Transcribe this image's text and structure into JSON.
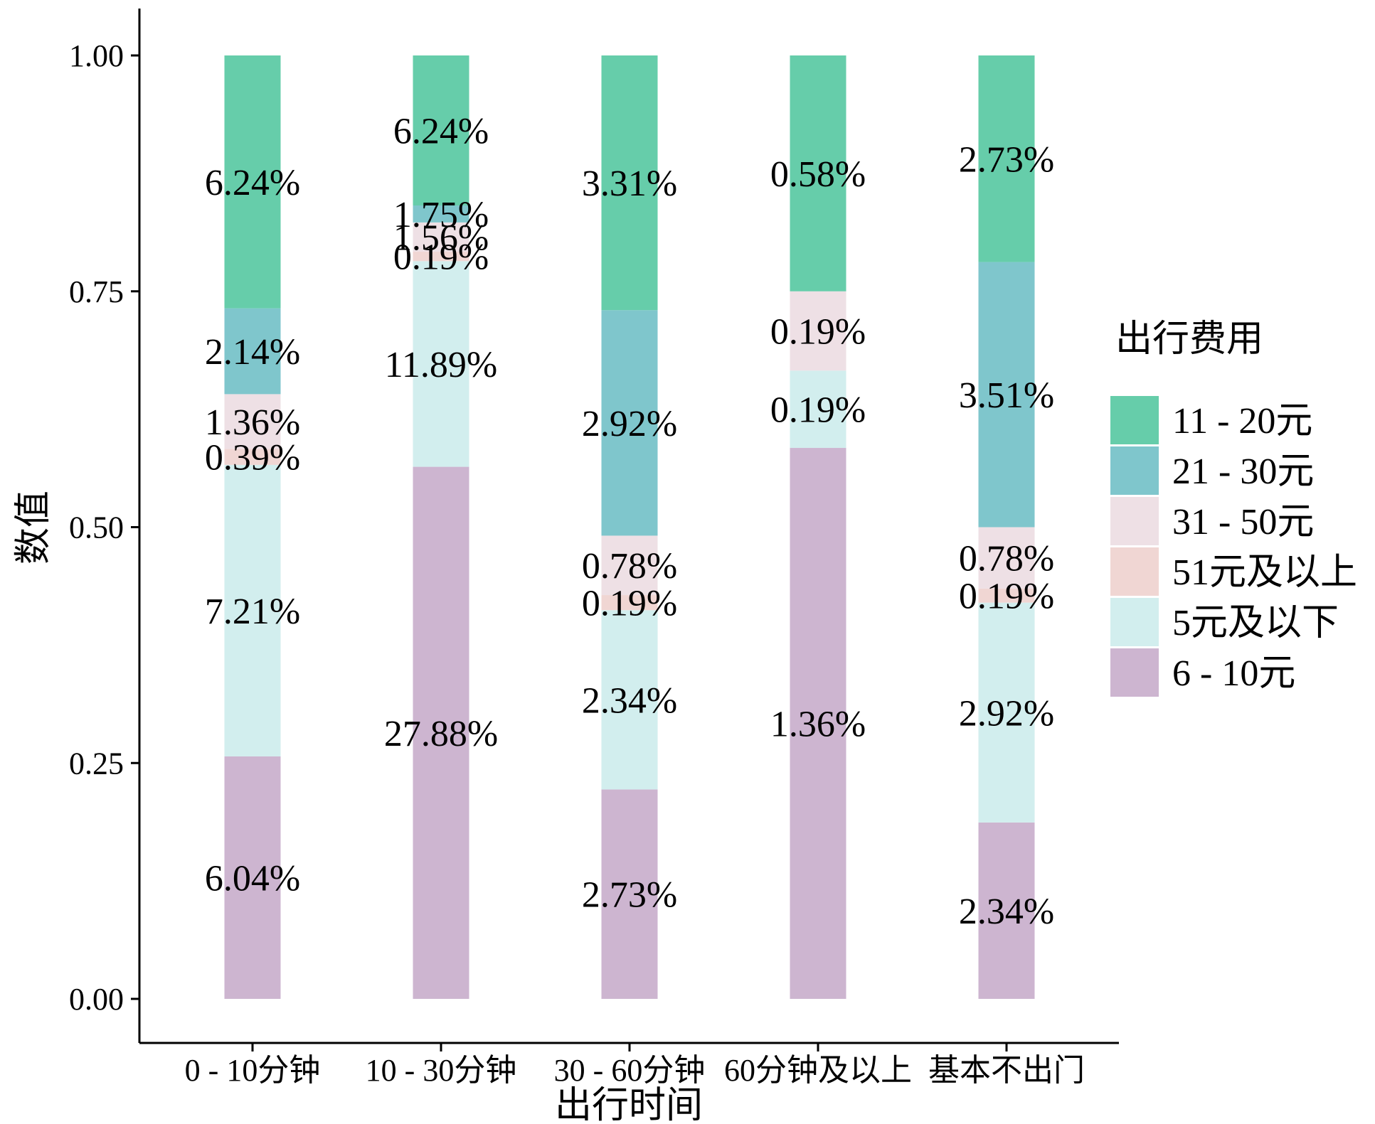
{
  "chart_data": {
    "type": "bar",
    "stacked": true,
    "xlabel": "出行时间",
    "ylabel": "数值",
    "ylim": [
      0,
      1
    ],
    "yticks": [
      "0.00",
      "0.25",
      "0.50",
      "0.75",
      "1.00"
    ],
    "ytick_values": [
      0,
      0.25,
      0.5,
      0.75,
      1.0
    ],
    "categories": [
      "0 - 10分钟",
      "10 - 30分钟",
      "30 - 60分钟",
      "60分钟及以上",
      "基本不出门"
    ],
    "legend": {
      "title": "出行费用",
      "position": "right",
      "entries": [
        "11 - 20元",
        "21 - 30元",
        "31 - 50元",
        "51元及以上",
        "5元及以下",
        "6 - 10元"
      ]
    },
    "stack_order_bottom_to_top": [
      "6 - 10元",
      "5元及以下",
      "51元及以上",
      "31 - 50元",
      "21 - 30元",
      "11 - 20元"
    ],
    "series": [
      {
        "name": "6 - 10元",
        "color": "#CDB5D0",
        "values": [
          0.257,
          0.564,
          0.222,
          0.584,
          0.187
        ],
        "labels": [
          "6.04%",
          "27.88%",
          "2.73%",
          "1.36%",
          "2.34%"
        ]
      },
      {
        "name": "5元及以下",
        "color": "#D2EEEE",
        "values": [
          0.309,
          0.218,
          0.19,
          0.082,
          0.233
        ],
        "labels": [
          "7.21%",
          "11.89%",
          "2.34%",
          "0.19%",
          "2.92%"
        ]
      },
      {
        "name": "51元及以上",
        "color": "#F0D6D3",
        "values": [
          0.017,
          0.01,
          0.016,
          0.0,
          0.015
        ],
        "labels": [
          "0.39%",
          "0.19%",
          "0.19%",
          "",
          "0.19%"
        ]
      },
      {
        "name": "31 - 50元",
        "color": "#EEE0E5",
        "values": [
          0.058,
          0.031,
          0.063,
          0.084,
          0.065
        ],
        "labels": [
          "1.36%",
          "1.56%",
          "0.78%",
          "0.19%",
          "0.78%"
        ]
      },
      {
        "name": "21 - 30元",
        "color": "#7FC6CC",
        "values": [
          0.091,
          0.018,
          0.239,
          0.0,
          0.281
        ],
        "labels": [
          "2.14%",
          "1.75%",
          "2.92%",
          "",
          "3.51%"
        ]
      },
      {
        "name": "11 - 20元",
        "color": "#66CDAA",
        "values": [
          0.268,
          0.159,
          0.27,
          0.25,
          0.219
        ],
        "labels": [
          "6.24%",
          "6.24%",
          "3.31%",
          "0.58%",
          "2.73%"
        ]
      }
    ]
  }
}
